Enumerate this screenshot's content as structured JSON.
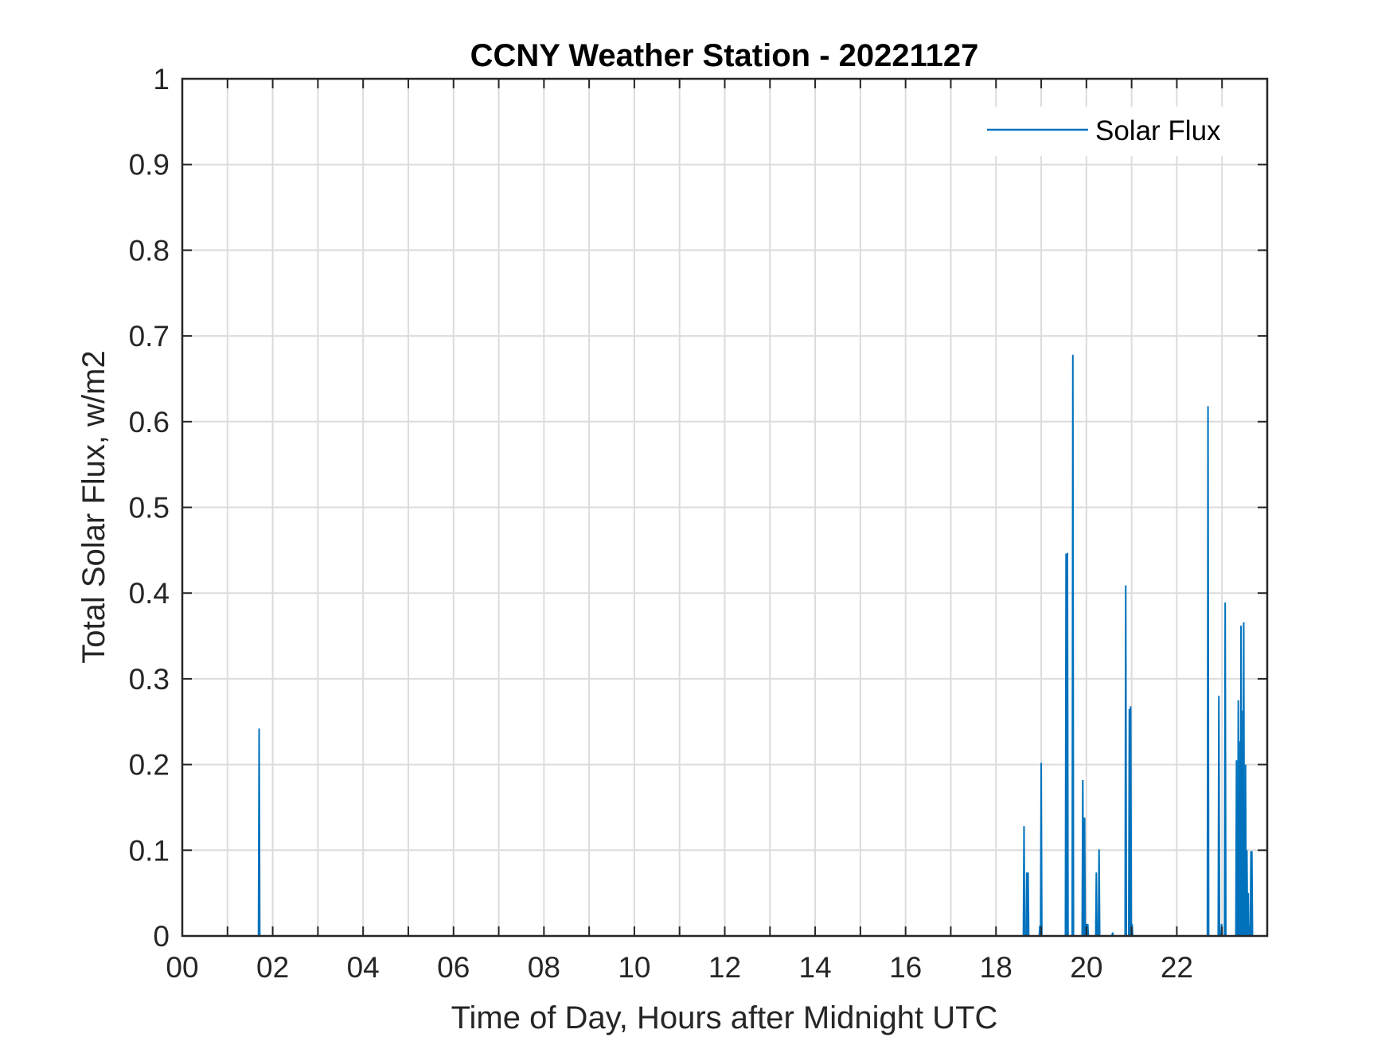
{
  "chart_data": {
    "type": "line",
    "title": "CCNY Weather Station - 20221127",
    "xlabel": "Time of Day, Hours after Midnight UTC",
    "ylabel": "Total Solar Flux, w/m2",
    "xlim": [
      0,
      24
    ],
    "ylim": [
      0,
      1
    ],
    "grid": true,
    "legend_position": "top-right",
    "x_gridlines": [
      0,
      1,
      2,
      3,
      4,
      5,
      6,
      7,
      8,
      9,
      10,
      11,
      12,
      13,
      14,
      15,
      16,
      17,
      18,
      19,
      20,
      21,
      22,
      23,
      24
    ],
    "x_ticks": [
      0,
      2,
      4,
      6,
      8,
      10,
      12,
      14,
      16,
      18,
      20,
      22
    ],
    "x_tick_labels": [
      "00",
      "02",
      "04",
      "06",
      "08",
      "10",
      "12",
      "14",
      "16",
      "18",
      "20",
      "22"
    ],
    "y_ticks": [
      0,
      0.1,
      0.2,
      0.3,
      0.4,
      0.5,
      0.6,
      0.7,
      0.8,
      0.9,
      1
    ],
    "y_tick_labels": [
      "0",
      "0.1",
      "0.2",
      "0.3",
      "0.4",
      "0.5",
      "0.6",
      "0.7",
      "0.8",
      "0.9",
      "1"
    ],
    "series": [
      {
        "name": "Solar Flux",
        "color": "#0072BD",
        "x": [
          1.7,
          18.62,
          18.68,
          18.71,
          18.97,
          19.0,
          19.55,
          19.58,
          19.7,
          19.92,
          19.96,
          20.0,
          20.03,
          20.22,
          20.28,
          20.58,
          20.87,
          20.95,
          20.98,
          21.01,
          22.69,
          22.93,
          22.99,
          23.07,
          23.32,
          23.36,
          23.4,
          23.42,
          23.46,
          23.48,
          23.52,
          23.55,
          23.58,
          23.62,
          23.64,
          23.66
        ],
        "y": [
          0.242,
          0.128,
          0.074,
          0.074,
          0.012,
          0.202,
          0.446,
          0.447,
          0.678,
          0.182,
          0.138,
          0.014,
          0.014,
          0.074,
          0.101,
          0.004,
          0.409,
          0.265,
          0.268,
          0.014,
          0.618,
          0.28,
          0.014,
          0.389,
          0.205,
          0.275,
          0.227,
          0.362,
          0.263,
          0.366,
          0.2,
          0.1,
          0.05,
          0.012,
          0.099,
          0.099
        ]
      }
    ]
  }
}
